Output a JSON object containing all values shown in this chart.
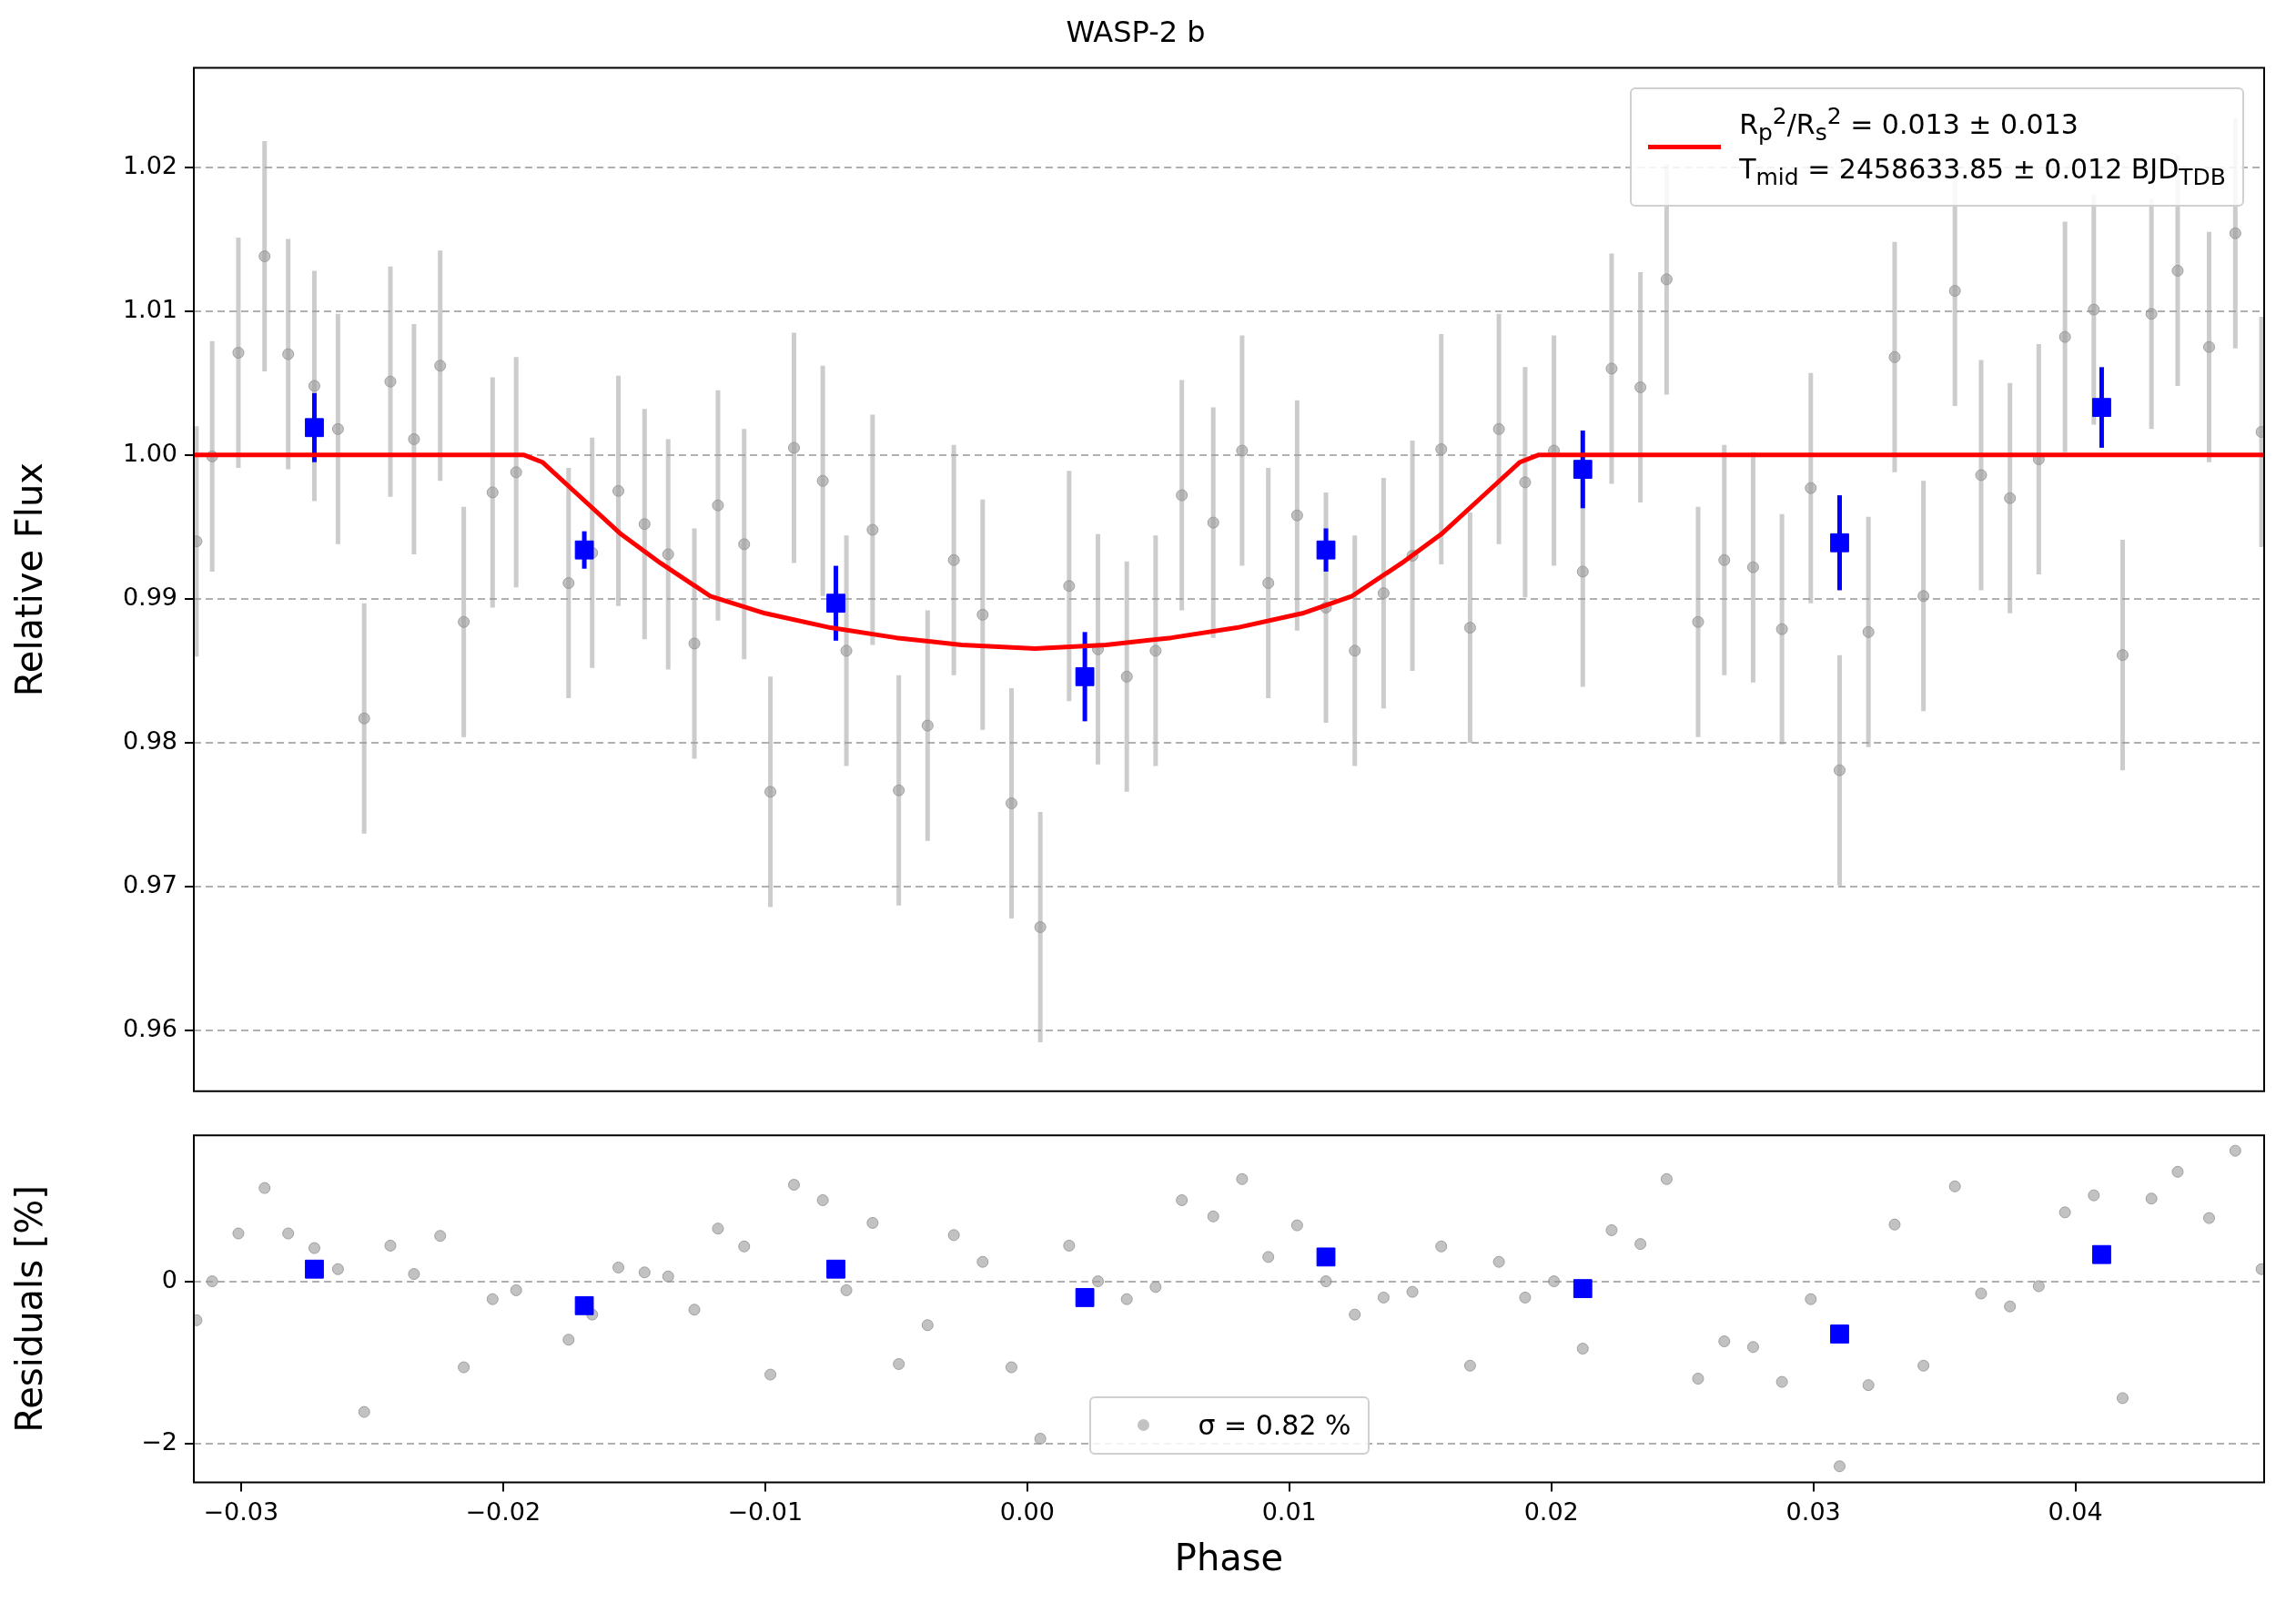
{
  "chart_data": [
    {
      "type": "scatter",
      "title": "WASP-2 b",
      "ylabel": "Relative Flux",
      "xlim": [
        -0.0318,
        0.0472
      ],
      "ylim": [
        0.9558,
        1.0269
      ],
      "yticks": [
        {
          "value": 0.96,
          "label": "0.96"
        },
        {
          "value": 0.97,
          "label": "0.97"
        },
        {
          "value": 0.98,
          "label": "0.98"
        },
        {
          "value": 0.99,
          "label": "0.99"
        },
        {
          "value": 1,
          "label": "1.00"
        },
        {
          "value": 1.01,
          "label": "1.01"
        },
        {
          "value": 1.02,
          "label": "1.02"
        }
      ],
      "grid": "y",
      "tick_labels": "y",
      "legend": "top right",
      "series": [
        {
          "type": "scatter",
          "color": "#999999",
          "marker": "circle",
          "x": [
            -0.0317,
            -0.0311,
            -0.0301,
            -0.0291,
            -0.0282,
            -0.0272,
            -0.0263,
            -0.0253,
            -0.0243,
            -0.0234,
            -0.0224,
            -0.0215,
            -0.0204,
            -0.0195,
            -0.0175,
            -0.0166,
            -0.0156,
            -0.0146,
            -0.0137,
            -0.0127,
            -0.0118,
            -0.0108,
            -0.0098,
            -0.0089,
            -0.0078,
            -0.0069,
            -0.0059,
            -0.0049,
            -0.0038,
            -0.0028,
            -0.0017,
            -0.0006,
            0.0005,
            0.0016,
            0.0027,
            0.0038,
            0.0049,
            0.0059,
            0.0071,
            0.0082,
            0.0092,
            0.0103,
            0.0114,
            0.0125,
            0.0136,
            0.0147,
            0.0158,
            0.0169,
            0.018,
            0.019,
            0.0201,
            0.0212,
            0.0223,
            0.0234,
            0.0244,
            0.0256,
            0.0266,
            0.0277,
            0.0288,
            0.0299,
            0.031,
            0.0321,
            0.0331,
            0.0342,
            0.0354,
            0.0364,
            0.0375,
            0.0386,
            0.0396,
            0.0407,
            0.0418,
            0.0429,
            0.0439,
            0.0451,
            0.0461,
            0.0471
          ],
          "values": [
            0.994,
            0.9999,
            1.0071,
            1.0138,
            1.007,
            1.0048,
            1.0018,
            0.9817,
            1.0051,
            1.0011,
            1.0062,
            0.9884,
            0.9974,
            0.9988,
            0.9911,
            0.9932,
            0.9975,
            0.9952,
            0.9931,
            0.9869,
            0.9965,
            0.9938,
            0.9766,
            1.0005,
            0.9982,
            0.9864,
            0.9948,
            0.9767,
            0.9812,
            0.9927,
            0.9889,
            0.9758,
            0.9672,
            0.9909,
            0.9865,
            0.9846,
            0.9864,
            0.9972,
            0.9953,
            1.0003,
            0.9911,
            0.9958,
            0.9894,
            0.9864,
            0.9904,
            0.993,
            1.0004,
            0.988,
            1.0018,
            0.9981,
            1.0003,
            0.9919,
            1.006,
            1.0047,
            1.0122,
            0.9884,
            0.9927,
            0.9922,
            0.9879,
            0.9977,
            0.9781,
            0.9877,
            1.0068,
            0.9902,
            1.0114,
            0.9986,
            0.997,
            0.9997,
            1.0082,
            1.0101,
            0.9861,
            1.0098,
            1.0128,
            1.0075,
            1.0154,
            1.0016
          ],
          "errors": [
            0.008,
            0.008,
            0.008,
            0.008,
            0.008,
            0.008,
            0.008,
            0.008,
            0.008,
            0.008,
            0.008,
            0.008,
            0.008,
            0.008,
            0.008,
            0.008,
            0.008,
            0.008,
            0.008,
            0.008,
            0.008,
            0.008,
            0.008,
            0.008,
            0.008,
            0.008,
            0.008,
            0.008,
            0.008,
            0.008,
            0.008,
            0.008,
            0.008,
            0.008,
            0.008,
            0.008,
            0.008,
            0.008,
            0.008,
            0.008,
            0.008,
            0.008,
            0.008,
            0.008,
            0.008,
            0.008,
            0.008,
            0.008,
            0.008,
            0.008,
            0.008,
            0.008,
            0.008,
            0.008,
            0.008,
            0.008,
            0.008,
            0.008,
            0.008,
            0.008,
            0.008,
            0.008,
            0.008,
            0.008,
            0.008,
            0.008,
            0.008,
            0.008,
            0.008,
            0.008,
            0.008,
            0.008,
            0.008,
            0.008,
            0.008,
            0.008
          ]
        },
        {
          "type": "line",
          "name": "R$_{p}$$^{2}$/R$_{s}$$^{2}$ = 0.013 ± 0.013\nT$_{mid}$ = 2458633.85 ± 0.012 BJD$_{TDB}$",
          "color": "#ff0000",
          "marker": "none",
          "x": [
            -0.0318,
            -0.0192,
            -0.0185,
            -0.017,
            -0.0155,
            -0.014,
            -0.0121,
            -0.01,
            -0.0075,
            -0.005,
            -0.0025,
            0.0003,
            0.003,
            0.0055,
            0.008,
            0.0105,
            0.0124,
            0.0143,
            0.0158,
            0.0173,
            0.0188,
            0.0195,
            0.0472
          ],
          "values": [
            1,
            1,
            0.9995,
            0.997,
            0.9945,
            0.9925,
            0.9902,
            0.989,
            0.988,
            0.9873,
            0.9868,
            0.98655,
            0.9868,
            0.9873,
            0.988,
            0.989,
            0.9902,
            0.9925,
            0.9945,
            0.997,
            0.9995,
            1,
            1
          ]
        },
        {
          "type": "scatter",
          "color": "#0000ff",
          "marker": "square",
          "x": [
            -0.0272,
            -0.0169,
            -0.0073,
            0.0022,
            0.0114,
            0.0212,
            0.031,
            0.041
          ],
          "values": [
            1.0019,
            0.9934,
            0.9897,
            0.9846,
            0.9934,
            0.999,
            0.9939,
            1.0033
          ],
          "errors": [
            0.0024,
            0.0013,
            0.0026,
            0.0031,
            0.0015,
            0.0027,
            0.0033,
            0.0028
          ]
        }
      ]
    },
    {
      "type": "scatter",
      "xlabel": "Phase",
      "ylabel": "Residuals [%]",
      "xlim": [
        -0.0318,
        0.0472
      ],
      "xticks": [
        {
          "value": -0.03,
          "label": "−0.03"
        },
        {
          "value": -0.02,
          "label": "−0.02"
        },
        {
          "value": -0.01,
          "label": "−0.01"
        },
        {
          "value": 0,
          "label": "0.00"
        },
        {
          "value": 0.01,
          "label": "0.01"
        },
        {
          "value": 0.02,
          "label": "0.02"
        },
        {
          "value": 0.03,
          "label": "0.03"
        },
        {
          "value": 0.04,
          "label": "0.04"
        }
      ],
      "ylim": [
        -2.48,
        1.8
      ],
      "yticks": [
        {
          "value": -2,
          "label": "−2"
        },
        {
          "value": 0,
          "label": "0"
        }
      ],
      "grid": "y",
      "legend": "bottom",
      "series": [
        {
          "type": "scatter",
          "name": "σ = 0.82 %",
          "color": "#999999",
          "marker": "circle",
          "x": [
            -0.0317,
            -0.0311,
            -0.0301,
            -0.0291,
            -0.0282,
            -0.0272,
            -0.0263,
            -0.0253,
            -0.0243,
            -0.0234,
            -0.0224,
            -0.0215,
            -0.0204,
            -0.0195,
            -0.0175,
            -0.0166,
            -0.0156,
            -0.0146,
            -0.0137,
            -0.0127,
            -0.0118,
            -0.0108,
            -0.0098,
            -0.0089,
            -0.0078,
            -0.0069,
            -0.0059,
            -0.0049,
            -0.0038,
            -0.0028,
            -0.0017,
            -0.0006,
            0.0005,
            0.0016,
            0.0027,
            0.0038,
            0.0049,
            0.0059,
            0.0071,
            0.0082,
            0.0092,
            0.0103,
            0.0114,
            0.0125,
            0.0136,
            0.0147,
            0.0158,
            0.0169,
            0.018,
            0.019,
            0.0201,
            0.0212,
            0.0223,
            0.0234,
            0.0244,
            0.0256,
            0.0266,
            0.0277,
            0.0288,
            0.0299,
            0.031,
            0.0321,
            0.0331,
            0.0342,
            0.0354,
            0.0364,
            0.0375,
            0.0386,
            0.0396,
            0.0407,
            0.0418,
            0.0429,
            0.0439,
            0.0451,
            0.0461,
            0.0471
          ],
          "values": [
            -0.48,
            0,
            0.59,
            1.15,
            0.59,
            0.41,
            0.15,
            -1.61,
            0.44,
            0.09,
            0.56,
            -1.06,
            -0.22,
            -0.11,
            -0.72,
            -0.41,
            0.17,
            0.11,
            0.06,
            -0.35,
            0.65,
            0.43,
            -1.15,
            1.19,
            1,
            -0.11,
            0.72,
            -1.02,
            -0.54,
            0.57,
            0.24,
            -1.06,
            -1.94,
            0.44,
            0,
            -0.22,
            -0.07,
            1,
            0.8,
            1.26,
            0.3,
            0.69,
            0,
            -0.41,
            -0.2,
            -0.13,
            0.43,
            -1.04,
            0.24,
            -0.2,
            0,
            -0.83,
            0.63,
            0.46,
            1.26,
            -1.2,
            -0.74,
            -0.81,
            -1.24,
            -0.22,
            -2.28,
            -1.28,
            0.7,
            -1.04,
            1.17,
            -0.15,
            -0.31,
            -0.06,
            0.85,
            1.06,
            -1.44,
            1.02,
            1.35,
            0.78,
            1.61,
            0.15
          ]
        },
        {
          "type": "scatter",
          "color": "#0000ff",
          "marker": "square",
          "x": [
            -0.0272,
            -0.0169,
            -0.0073,
            0.0022,
            0.0114,
            0.0212,
            0.031,
            0.041
          ],
          "values": [
            0.15,
            -0.3,
            0.15,
            -0.2,
            0.3,
            -0.09,
            -0.65,
            0.33
          ]
        }
      ]
    }
  ]
}
